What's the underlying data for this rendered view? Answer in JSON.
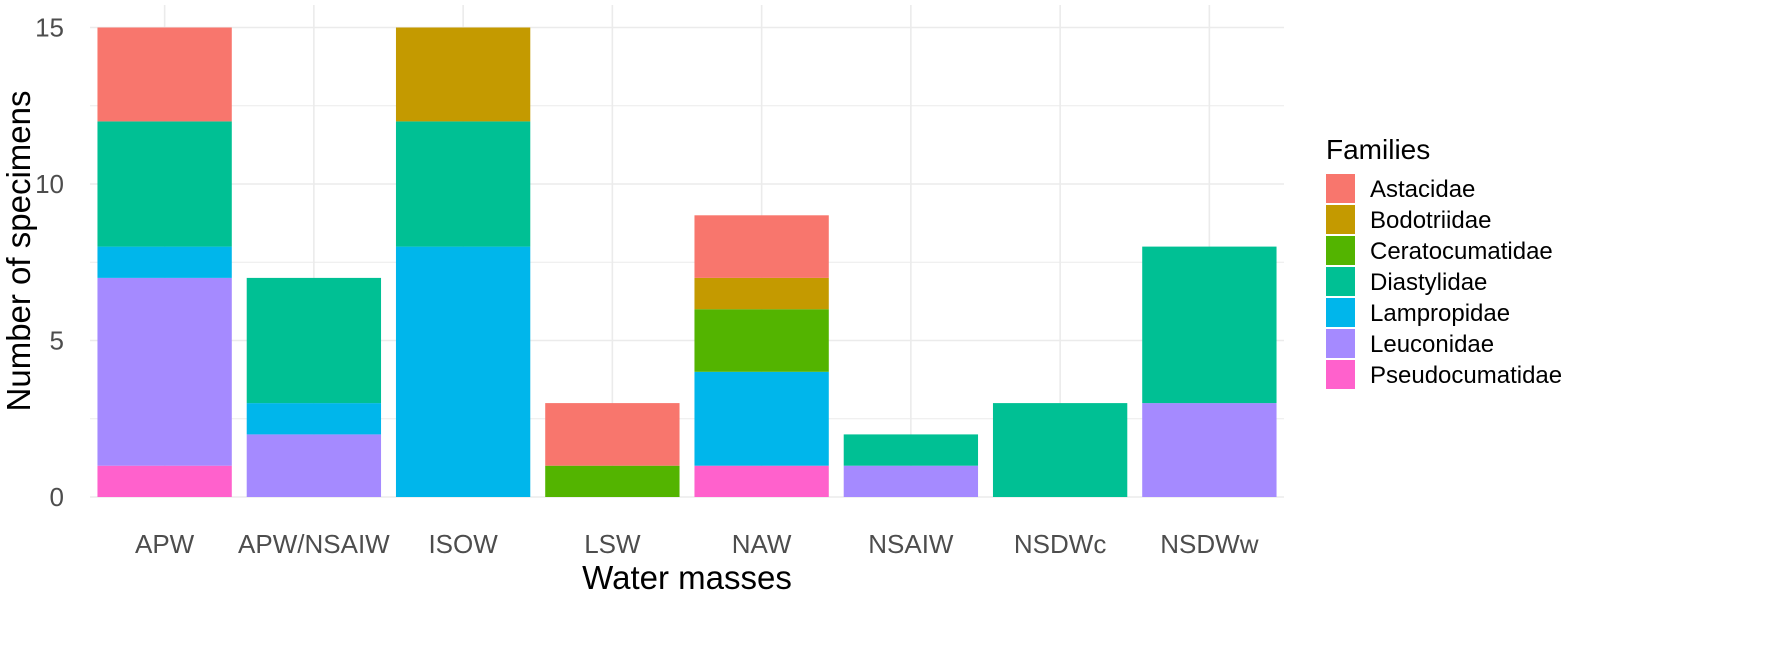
{
  "chart_data": {
    "type": "bar",
    "stacked": true,
    "title": "",
    "xlabel": "Water masses",
    "ylabel": "Number of specimens",
    "ylim": [
      0,
      15.6
    ],
    "yticks": [
      0,
      5,
      10,
      15
    ],
    "grid": true,
    "legend_title": "Families",
    "legend_position": "right",
    "categories": [
      "APW",
      "APW/NSAIW",
      "ISOW",
      "LSW",
      "NAW",
      "NSAIW",
      "NSDWc",
      "NSDWw"
    ],
    "series": [
      {
        "name": "Pseudocumatidae",
        "color": "#FF61CC",
        "values": [
          1,
          0,
          0,
          0,
          1,
          0,
          0,
          0
        ]
      },
      {
        "name": "Leuconidae",
        "color": "#A58AFF",
        "values": [
          6,
          2,
          0,
          0,
          0,
          1,
          0,
          3
        ]
      },
      {
        "name": "Lampropidae",
        "color": "#00B6EB",
        "values": [
          1,
          1,
          8,
          0,
          3,
          0,
          0,
          0
        ]
      },
      {
        "name": "Diastylidae",
        "color": "#00C094",
        "values": [
          4,
          4,
          4,
          0,
          0,
          1,
          3,
          5
        ]
      },
      {
        "name": "Ceratocumatidae",
        "color": "#53B400",
        "values": [
          0,
          0,
          0,
          1,
          2,
          0,
          0,
          0
        ]
      },
      {
        "name": "Bodotriidae",
        "color": "#C49A00",
        "values": [
          0,
          0,
          3,
          0,
          1,
          0,
          0,
          0
        ]
      },
      {
        "name": "Astacidae",
        "color": "#F8766D",
        "values": [
          3,
          0,
          0,
          2,
          2,
          0,
          0,
          0
        ]
      }
    ],
    "legend_order": [
      "Astacidae",
      "Bodotriidae",
      "Ceratocumatidae",
      "Diastylidae",
      "Lampropidae",
      "Leuconidae",
      "Pseudocumatidae"
    ]
  }
}
